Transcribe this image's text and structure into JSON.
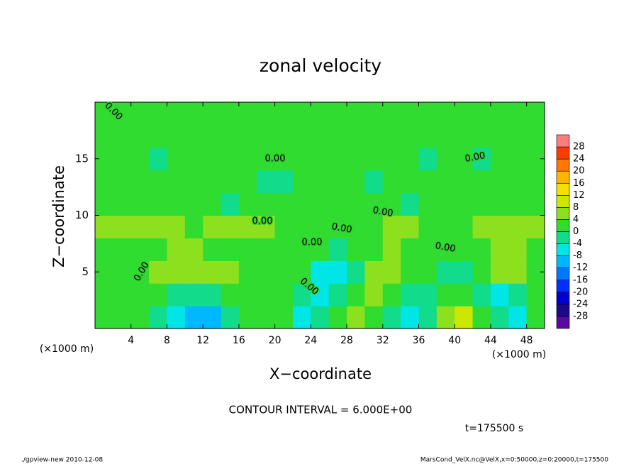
{
  "chart_data": {
    "type": "contour",
    "title": "zonal velocity",
    "xlabel": "X−coordinate",
    "ylabel": "Z−coordinate",
    "x_unit_labels": [
      "(×1000 m)",
      "(×1000 m)"
    ],
    "contour_interval_label": "CONTOUR INTERVAL = 6.000E+00",
    "time_label": "t=175500 s",
    "footer_left": "./gpview-new  2010-12-08",
    "footer_right": "MarsCond_VelX.nc@VelX,x=0:50000,z=0:20000,t=175500",
    "contour_labels": [
      "0.00",
      "0.00",
      "0.00",
      "0.00",
      "0.00",
      "0.00",
      "0.00",
      "0.00",
      "0.00",
      "0.00"
    ],
    "xlim": [
      0,
      50
    ],
    "ylim": [
      0,
      20
    ],
    "xticks": [
      4,
      8,
      12,
      16,
      20,
      24,
      28,
      32,
      36,
      40,
      44,
      48
    ],
    "yticks": [
      5,
      10,
      15
    ],
    "x": [
      1,
      3,
      5,
      7,
      9,
      11,
      13,
      15,
      17,
      19,
      21,
      23,
      25,
      27,
      29,
      31,
      33,
      35,
      37,
      39,
      41,
      43,
      45,
      47,
      49
    ],
    "y": [
      1,
      3,
      5,
      7,
      9,
      11,
      13,
      15,
      17,
      19
    ],
    "z": [
      [
        1,
        1,
        2,
        -2,
        -6,
        -10,
        -12,
        -4,
        2,
        3,
        0,
        -6,
        -4,
        2,
        6,
        3,
        -2,
        -8,
        -2,
        6,
        8,
        2,
        -4,
        -6,
        0
      ],
      [
        2,
        3,
        3,
        1,
        -2,
        -4,
        -2,
        1,
        2,
        3,
        1,
        -3,
        -8,
        -4,
        2,
        4,
        1,
        -2,
        -1,
        2,
        2,
        -4,
        -8,
        -3,
        1
      ],
      [
        1,
        0,
        2,
        4,
        4,
        6,
        6,
        4,
        2,
        2,
        3,
        1,
        -6,
        -8,
        -2,
        4,
        6,
        3,
        0,
        -2,
        -3,
        2,
        6,
        6,
        2
      ],
      [
        3,
        3,
        3,
        2,
        4,
        4,
        3,
        2,
        2,
        3,
        3,
        2,
        0,
        -1,
        1,
        3,
        4,
        3,
        2,
        2,
        1,
        3,
        5,
        4,
        3
      ],
      [
        4,
        4,
        4,
        4,
        4,
        3,
        4,
        4,
        4,
        4,
        3,
        2,
        2,
        1,
        2,
        3,
        4,
        4,
        3,
        3,
        3,
        4,
        4,
        4,
        4
      ],
      [
        1,
        2,
        2,
        1,
        1,
        1,
        0,
        -1,
        0,
        1,
        1,
        2,
        1,
        0,
        0,
        1,
        0,
        -1,
        0,
        1,
        1,
        1,
        1,
        1,
        1
      ],
      [
        0,
        0,
        1,
        1,
        1,
        1,
        1,
        1,
        0,
        -1,
        -1,
        0,
        1,
        1,
        1,
        -1,
        0,
        0,
        1,
        1,
        0,
        0,
        1,
        0,
        0
      ],
      [
        1,
        0,
        0,
        -1,
        0,
        1,
        1,
        1,
        1,
        0,
        0,
        1,
        1,
        1,
        1,
        1,
        1,
        0,
        -1,
        0,
        0,
        -1,
        0,
        1,
        1
      ],
      [
        1,
        1,
        1,
        1,
        1,
        1,
        1,
        1,
        1,
        1,
        1,
        1,
        1,
        1,
        1,
        1,
        1,
        1,
        1,
        1,
        0,
        0,
        1,
        1,
        1
      ],
      [
        0,
        1,
        1,
        1,
        1,
        1,
        1,
        1,
        1,
        1,
        1,
        1,
        1,
        1,
        1,
        1,
        1,
        1,
        1,
        1,
        1,
        1,
        1,
        1,
        1
      ]
    ],
    "clim": [
      -32,
      32
    ],
    "cticks": [
      28,
      24,
      20,
      16,
      12,
      8,
      4,
      0,
      -4,
      -8,
      -12,
      -16,
      -20,
      -24,
      -28
    ],
    "colors": [
      "#5a0a9e",
      "#1a0a8a",
      "#0000cd",
      "#0030ff",
      "#0078ff",
      "#00b8ff",
      "#00e6e6",
      "#10dc8c",
      "#30dc30",
      "#8ce01e",
      "#cce800",
      "#f2e000",
      "#ffb400",
      "#ff7800",
      "#ff3c00",
      "#ff7c7c"
    ]
  }
}
